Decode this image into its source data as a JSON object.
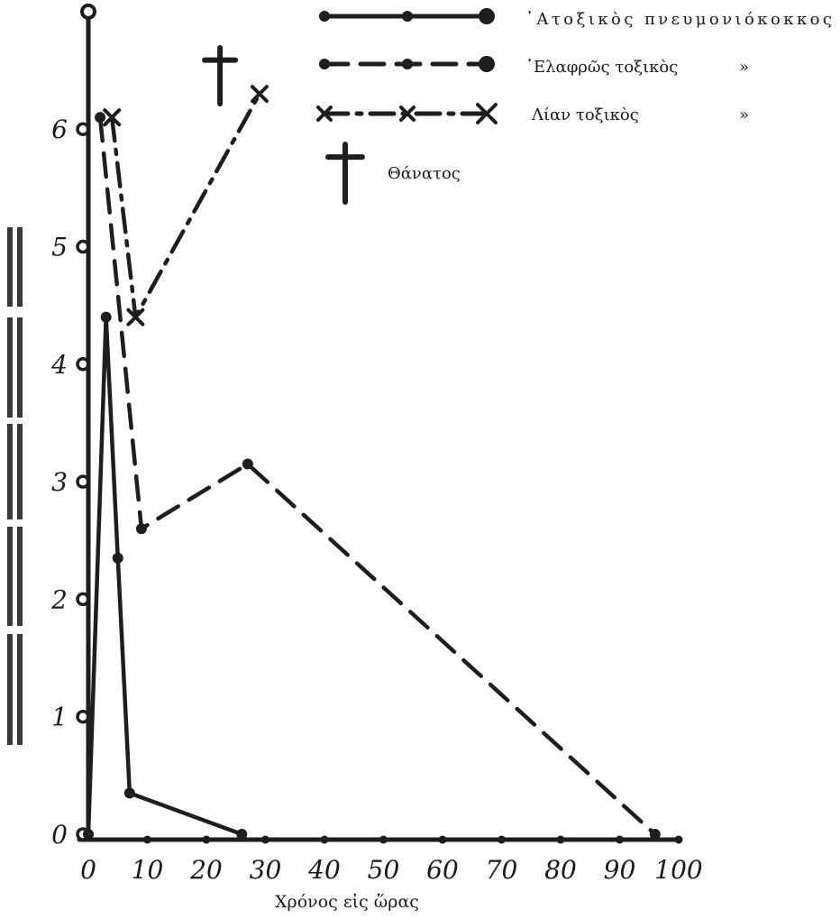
{
  "colors": {
    "ink": "#1e1e1e",
    "paper": "#ffffff"
  },
  "chart_data": {
    "type": "line",
    "title": "",
    "xlabel": "Χρόνος εἰς ὥρας",
    "ylabel": "",
    "xlim": [
      0,
      100
    ],
    "ylim": [
      0,
      7
    ],
    "xticks": [
      0,
      10,
      20,
      30,
      40,
      50,
      60,
      70,
      80,
      90,
      100
    ],
    "xtick_labels": [
      "0",
      "10",
      "20",
      "30",
      "40",
      "50",
      "60",
      "70",
      "80",
      "90",
      "100"
    ],
    "yticks": [
      0,
      1,
      2,
      3,
      4,
      5,
      6
    ],
    "ytick_labels": [
      "0",
      "1",
      "2",
      "3",
      "4",
      "5",
      "6"
    ],
    "grid": false,
    "legend_position": "top-right",
    "series": [
      {
        "name": "᾿Ατοξικὸς πνευμονιόκοκκος",
        "style": "solid",
        "marker": "dot",
        "x": [
          0,
          0,
          3,
          5,
          7,
          26
        ],
        "y": [
          7,
          0,
          4.4,
          2.35,
          0.35,
          0
        ]
      },
      {
        "name": "᾿Ελαφρῶς τοξικὸς",
        "legend_suffix": "»",
        "style": "dashed",
        "marker": "dot",
        "x": [
          2,
          9,
          27,
          96
        ],
        "y": [
          6.1,
          2.6,
          3.15,
          0
        ]
      },
      {
        "name": "Λίαν τοξικὸς",
        "legend_suffix": "»",
        "style": "dashdot",
        "marker": "x",
        "x": [
          4,
          8,
          29
        ],
        "y": [
          6.1,
          4.4,
          6.3
        ]
      }
    ],
    "annotations": [
      {
        "type": "cross",
        "label": "Θάνατος",
        "x": 22,
        "y": 6.6
      }
    ]
  }
}
